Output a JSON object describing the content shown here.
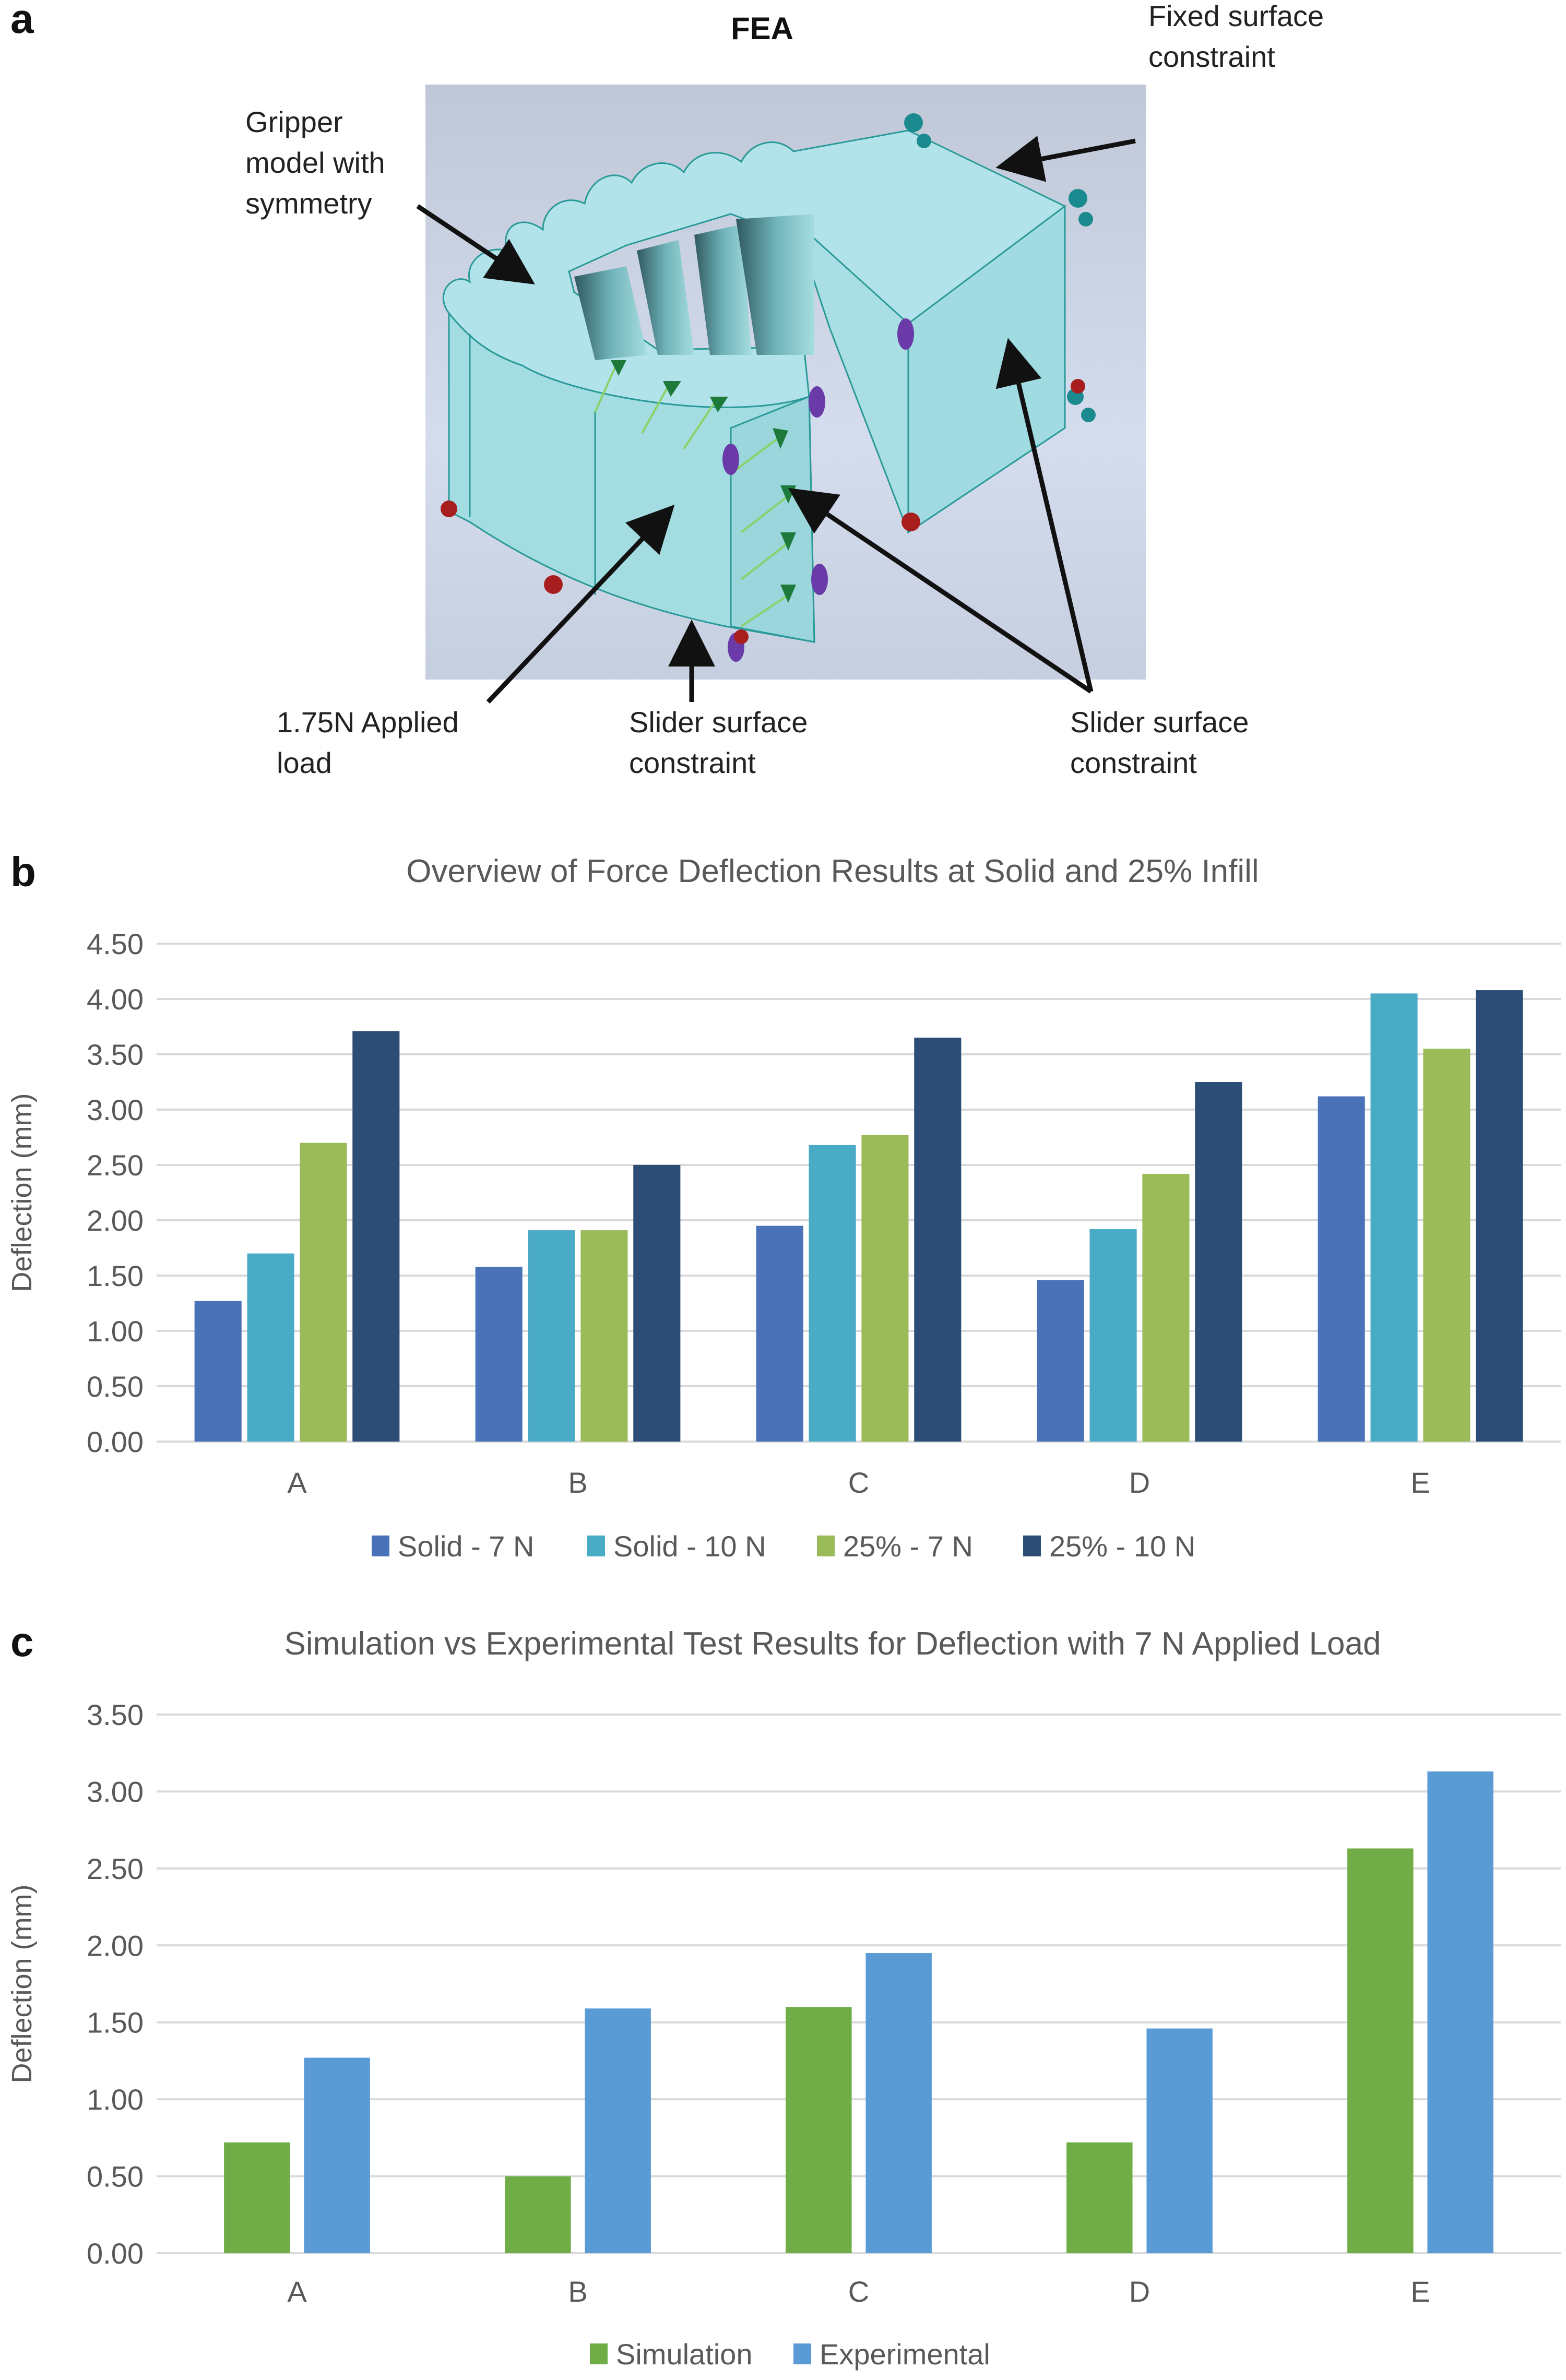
{
  "panels": {
    "a": {
      "letter": "a",
      "title": "FEA",
      "callouts": {
        "fixed": "Fixed surface\nconstraint",
        "gripper": "Gripper\nmodel with\nsymmetry",
        "load": "1.75N Applied\nload",
        "slider_bottom": "Slider surface\nconstraint",
        "slider_right": "Slider surface\nconstraint"
      },
      "colors": {
        "background": "#c3ccdb",
        "model_top": "#b2e3ea",
        "model_side": "#9fdbe0",
        "edge": "#2a9a98",
        "load_arrow": "#1e7a3a",
        "fixed_marker": "#1a8a8f",
        "slider_marker": "#6a3aa8",
        "red_marker": "#a81e1e"
      }
    },
    "b": {
      "letter": "b"
    },
    "c": {
      "letter": "c"
    }
  },
  "chart_data": [
    {
      "id": "b",
      "type": "bar",
      "title": "Overview of Force Deflection Results at Solid and 25% Infill",
      "xlabel": "",
      "ylabel": "Deflection (mm)",
      "categories": [
        "A",
        "B",
        "C",
        "D",
        "E"
      ],
      "ylim": [
        0,
        4.5
      ],
      "yticks": [
        0,
        0.5,
        1.0,
        1.5,
        2.0,
        2.5,
        3.0,
        3.5,
        4.0,
        4.5
      ],
      "ytick_labels": [
        "0.00",
        "0.50",
        "1.00",
        "1.50",
        "2.00",
        "2.50",
        "3.00",
        "3.50",
        "4.00",
        "4.50"
      ],
      "grid": true,
      "legend_position": "bottom",
      "series": [
        {
          "name": "Solid - 7 N",
          "color": "#4a72b8",
          "values": [
            1.27,
            1.58,
            1.95,
            1.46,
            3.12
          ]
        },
        {
          "name": "Solid - 10 N",
          "color": "#4aabc6",
          "values": [
            1.7,
            1.91,
            2.68,
            1.92,
            4.05
          ]
        },
        {
          "name": "25% - 7 N",
          "color": "#9bbb59",
          "values": [
            2.7,
            1.91,
            2.77,
            2.42,
            3.55
          ]
        },
        {
          "name": "25% - 10 N",
          "color": "#2c4d75",
          "values": [
            3.71,
            2.5,
            3.65,
            3.25,
            4.08
          ]
        }
      ]
    },
    {
      "id": "c",
      "type": "bar",
      "title": "Simulation vs Experimental Test Results for Deflection with 7 N Applied Load",
      "xlabel": "",
      "ylabel": "Deflection (mm)",
      "categories": [
        "A",
        "B",
        "C",
        "D",
        "E"
      ],
      "ylim": [
        0,
        3.5
      ],
      "yticks": [
        0,
        0.5,
        1.0,
        1.5,
        2.0,
        2.5,
        3.0,
        3.5
      ],
      "ytick_labels": [
        "0.00",
        "0.50",
        "1.00",
        "1.50",
        "2.00",
        "2.50",
        "3.00",
        "3.50"
      ],
      "grid": true,
      "legend_position": "bottom",
      "series": [
        {
          "name": "Simulation",
          "color": "#70ad47",
          "values": [
            0.72,
            0.5,
            1.6,
            0.72,
            2.63
          ]
        },
        {
          "name": "Experimental",
          "color": "#5b9bd5",
          "values": [
            1.27,
            1.59,
            1.95,
            1.46,
            3.13
          ]
        }
      ]
    }
  ]
}
